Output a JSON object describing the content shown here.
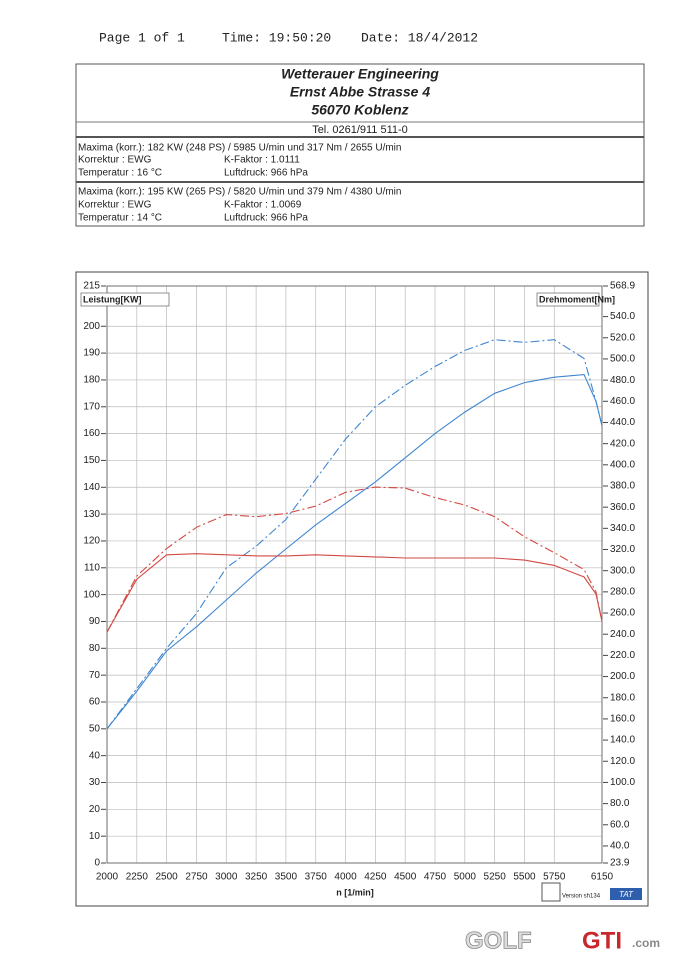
{
  "header": {
    "page": "Page 1 of 1",
    "time": "Time: 19:50:20",
    "date": "Date: 18/4/2012"
  },
  "company": {
    "name": "Wetterauer Engineering",
    "street": "Ernst Abbe Strasse 4",
    "city": "56070 Koblenz",
    "tel": "Tel. 0261/911 511-0"
  },
  "runs": [
    {
      "maxima": "Maxima (korr.):  182 KW (248 PS) /  5985 U/min  und   317 Nm /  2655 U/min",
      "korrektur": "Korrektur  :  EWG",
      "kfaktor": "K-Faktor :  1.0111",
      "temperatur": "Temperatur :  16 °C",
      "luftdruck": "Luftdruck:  966 hPa"
    },
    {
      "maxima": "Maxima (korr.):  195 KW (265 PS) /  5820 U/min  und   379 Nm /  4380 U/min",
      "korrektur": "Korrektur  :  EWG",
      "kfaktor": "K-Faktor :  1.0069",
      "temperatur": "Temperatur :  14 °C",
      "luftdruck": "Luftdruck:  966 hPa"
    }
  ],
  "chart_data": {
    "type": "line",
    "y_label": "Leistung[KW]",
    "y2_label": "Drehmoment[Nm]",
    "x_label": "n  [1/min]",
    "x": [
      2000,
      2250,
      2500,
      2750,
      3000,
      3250,
      3500,
      3750,
      4000,
      4250,
      4500,
      4750,
      5000,
      5250,
      5500,
      5750,
      6000,
      6100,
      6150
    ],
    "xlim": [
      2000,
      6150
    ],
    "xticks": [
      2000,
      2250,
      2500,
      2750,
      3000,
      3250,
      3500,
      3750,
      4000,
      4250,
      4500,
      4750,
      5000,
      5250,
      5500,
      5750,
      6150
    ],
    "ylim": [
      0,
      215
    ],
    "yticks": [
      0,
      10,
      20,
      30,
      40,
      50,
      60,
      70,
      80,
      90,
      100,
      110,
      120,
      130,
      140,
      150,
      160,
      170,
      180,
      190,
      200,
      215
    ],
    "y2lim": [
      23.9,
      568.9
    ],
    "y2ticks": [
      23.9,
      {
        "value": 40,
        "label": "40.0"
      },
      {
        "value": 60,
        "label": "60.0"
      },
      {
        "value": 80,
        "label": "80.0"
      },
      {
        "value": 100,
        "label": "100.0"
      },
      {
        "value": 120,
        "label": "120.0"
      },
      {
        "value": 140,
        "label": "140.0"
      },
      {
        "value": 160,
        "label": "160.0"
      },
      {
        "value": 180,
        "label": "180.0"
      },
      {
        "value": 200,
        "label": "200.0"
      },
      {
        "value": 220,
        "label": "220.0"
      },
      {
        "value": 240,
        "label": "240.0"
      },
      {
        "value": 260,
        "label": "260.0"
      },
      {
        "value": 280,
        "label": "280.0"
      },
      {
        "value": 300,
        "label": "300.0"
      },
      {
        "value": 320,
        "label": "320.0"
      },
      {
        "value": 340,
        "label": "340.0"
      },
      {
        "value": 360,
        "label": "360.0"
      },
      {
        "value": 380,
        "label": "380.0"
      },
      {
        "value": 400,
        "label": "400.0"
      },
      {
        "value": 420,
        "label": "420.0"
      },
      {
        "value": 440,
        "label": "440.0"
      },
      {
        "value": 460,
        "label": "460.0"
      },
      {
        "value": 480,
        "label": "480.0"
      },
      {
        "value": 500,
        "label": "500.0"
      },
      {
        "value": 520,
        "label": "520.0"
      },
      {
        "value": 540,
        "label": "540.0"
      },
      568.9
    ],
    "grid": true,
    "series": [
      {
        "color": "#3f86d0",
        "style": "solid",
        "values": [
          50,
          64,
          79,
          88,
          98,
          108,
          117,
          126,
          134,
          142,
          151,
          160,
          168,
          175,
          179,
          181,
          182,
          172,
          163
        ]
      },
      {
        "color": "#3f86d0",
        "style": "dashdot",
        "values": [
          50,
          65,
          80,
          93,
          110,
          118,
          128,
          143,
          158,
          170,
          178,
          185,
          191,
          195,
          194,
          195,
          188,
          172,
          163
        ]
      },
      {
        "color": "#d24a44",
        "style": "solid",
        "axis": "y2",
        "values": [
          242,
          292,
          315,
          316,
          315,
          314,
          314,
          315,
          314,
          313,
          312,
          312,
          312,
          312,
          310,
          305,
          294,
          278,
          252
        ]
      },
      {
        "color": "#d24a44",
        "style": "dashdot",
        "axis": "y2",
        "values": [
          242,
          295,
          321,
          341,
          353,
          351,
          354,
          361,
          374,
          379,
          378,
          369,
          362,
          351,
          332,
          317,
          301,
          280,
          252
        ]
      }
    ]
  },
  "footer": {
    "version": "Version sh134",
    "tat": "TAT",
    "wm_golf": "GOLF",
    "wm_gti": "GTI",
    "wm_com": ".com"
  }
}
